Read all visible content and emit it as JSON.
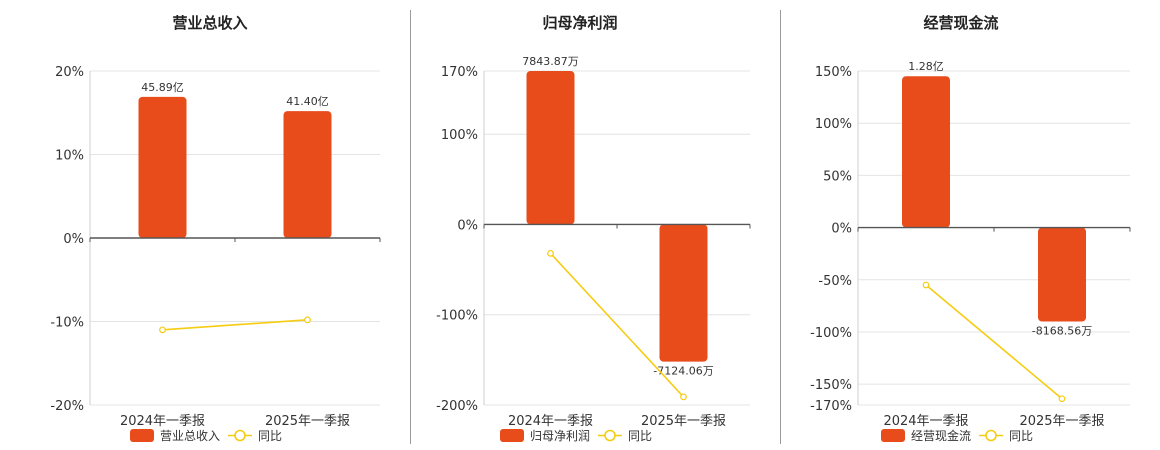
{
  "chart_data": [
    {
      "type": "bar",
      "title": "营业总收入",
      "categories": [
        "2024年一季报",
        "2025年一季报"
      ],
      "series": [
        {
          "name": "营业总收入",
          "kind": "bar",
          "values": [
            16.9,
            15.2
          ],
          "labels": [
            "45.89亿",
            "41.40亿"
          ],
          "color": "#e84c1b"
        },
        {
          "name": "同比",
          "kind": "line",
          "values": [
            -11.0,
            -9.8
          ],
          "color": "#f5cc12"
        }
      ],
      "yticks": [
        "20%",
        "10%",
        "0%",
        "-10%",
        "-20%"
      ],
      "ylim": [
        -20,
        20
      ]
    },
    {
      "type": "bar",
      "title": "归母净利润",
      "categories": [
        "2024年一季报",
        "2025年一季报"
      ],
      "series": [
        {
          "name": "归母净利润",
          "kind": "bar",
          "values": [
            170,
            -152
          ],
          "labels": [
            "7843.87万",
            "-7124.06万"
          ],
          "color": "#e84c1b"
        },
        {
          "name": "同比",
          "kind": "line",
          "values": [
            -32,
            -191
          ],
          "color": "#f5cc12"
        }
      ],
      "yticks": [
        "170%",
        "100%",
        "0%",
        "-100%",
        "-200%"
      ],
      "ylim": [
        -200,
        170
      ]
    },
    {
      "type": "bar",
      "title": "经营现金流",
      "categories": [
        "2024年一季报",
        "2025年一季报"
      ],
      "series": [
        {
          "name": "经营现金流",
          "kind": "bar",
          "values": [
            145,
            -90
          ],
          "labels": [
            "1.28亿",
            "-8168.56万"
          ],
          "color": "#e84c1b"
        },
        {
          "name": "同比",
          "kind": "line",
          "values": [
            -55,
            -164
          ],
          "color": "#f5cc12"
        }
      ],
      "yticks": [
        "150%",
        "100%",
        "50%",
        "0%",
        "-50%",
        "-100%",
        "-150%",
        "-170%"
      ],
      "ylim": [
        -170,
        150
      ]
    }
  ]
}
